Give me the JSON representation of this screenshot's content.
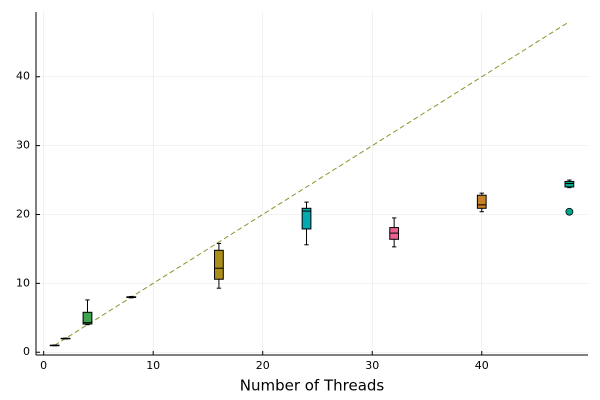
{
  "chart_data": {
    "type": "box",
    "x_label": "Number of Threads",
    "xlim": [
      -0.7,
      49.7
    ],
    "xticks": [
      0,
      10,
      20,
      30,
      40
    ],
    "ylim": [
      -0.4,
      49.4
    ],
    "yticks": [
      0,
      10,
      20,
      30,
      40
    ],
    "grid": true,
    "box_width": 0.8,
    "boxes": [
      {
        "x": 1,
        "color": "#009AFA",
        "min": 0.95,
        "q1": 0.98,
        "median": 1.0,
        "q3": 1.02,
        "max": 1.05,
        "outliers": []
      },
      {
        "x": 2,
        "color": "#E36F47",
        "min": 1.95,
        "q1": 1.98,
        "median": 2.0,
        "q3": 2.02,
        "max": 2.05,
        "outliers": []
      },
      {
        "x": 4,
        "color": "#3EA44E",
        "min": 4.0,
        "q1": 4.1,
        "median": 4.3,
        "q3": 5.8,
        "max": 7.6,
        "outliers": []
      },
      {
        "x": 8,
        "color": "#C371D2",
        "min": 7.9,
        "q1": 7.95,
        "median": 8.0,
        "q3": 8.05,
        "max": 8.1,
        "outliers": []
      },
      {
        "x": 16,
        "color": "#AC8E18",
        "min": 9.3,
        "q1": 10.6,
        "median": 12.2,
        "q3": 14.8,
        "max": 15.8,
        "outliers": []
      },
      {
        "x": 24,
        "color": "#00AAAE",
        "min": 15.6,
        "q1": 17.9,
        "median": 20.5,
        "q3": 20.9,
        "max": 21.8,
        "outliers": []
      },
      {
        "x": 32,
        "color": "#ED5E93",
        "min": 15.3,
        "q1": 16.4,
        "median": 17.3,
        "q3": 18.1,
        "max": 19.5,
        "outliers": []
      },
      {
        "x": 40,
        "color": "#C68225",
        "min": 20.4,
        "q1": 20.9,
        "median": 21.4,
        "q3": 22.8,
        "max": 23.1,
        "outliers": []
      },
      {
        "x": 48,
        "color": "#00A98D",
        "min": 23.9,
        "q1": 24.0,
        "median": 24.5,
        "q3": 24.8,
        "max": 25.0,
        "outliers": [
          20.4
        ]
      }
    ],
    "reference_line": {
      "x": [
        1,
        48
      ],
      "y": [
        1,
        48
      ],
      "color": "#7F9A2A",
      "dashed": true
    }
  }
}
